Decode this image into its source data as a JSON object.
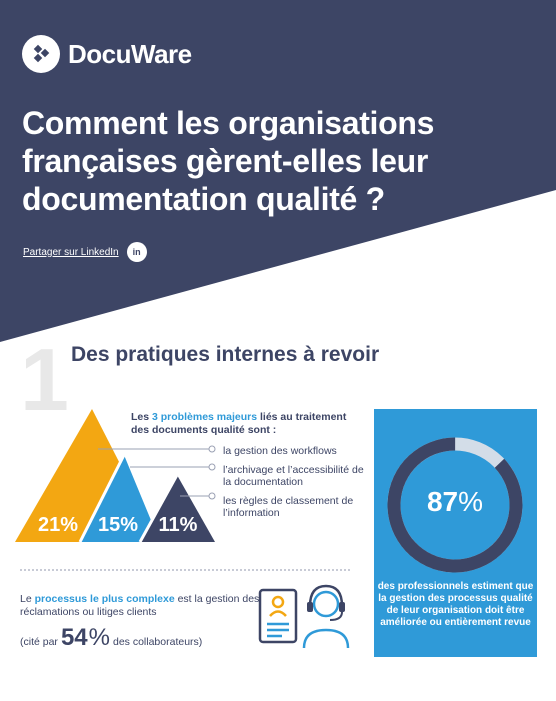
{
  "brand": {
    "name": "DocuWare"
  },
  "header": {
    "title": "Comment les organisations françaises gèrent-elles leur documentation qualité ?",
    "share_label": "Partager sur LinkedIn",
    "linkedin_icon_text": "in"
  },
  "section1": {
    "number": "1",
    "title": "Des pratiques internes à revoir",
    "intro_pre": "Les ",
    "intro_accent": "3 problèmes majeurs",
    "intro_post": " liés au traitement des documents qualité sont :",
    "legend": [
      "la gestion des workflows",
      "l’archivage et l’accessibilité de la documentation",
      "les règles de classement de l’information"
    ],
    "triangles": [
      {
        "value": 21,
        "label": "21%",
        "color": "#f3a712"
      },
      {
        "value": 15,
        "label": "15%",
        "color": "#2f9ad8"
      },
      {
        "value": 11,
        "label": "11%",
        "color": "#3d4565"
      }
    ],
    "complex_pre": "Le ",
    "complex_accent": "processus le plus complexe",
    "complex_post": " est la gestion des réclamations ou litiges clients",
    "cite_pre": "(cité par",
    "cite_num": "54",
    "cite_pct": "%",
    "cite_post": "des collaborateurs)",
    "panel": {
      "value": 87,
      "num": "87",
      "pct": "%",
      "text": "des professionnels estiment que la gestion des processus qualité de leur organisation doit être améliorée ou entièrement revue"
    }
  },
  "colors": {
    "navy": "#3d4565",
    "blue": "#2f9ad8",
    "orange": "#f3a712",
    "track": "#d3dde8"
  }
}
